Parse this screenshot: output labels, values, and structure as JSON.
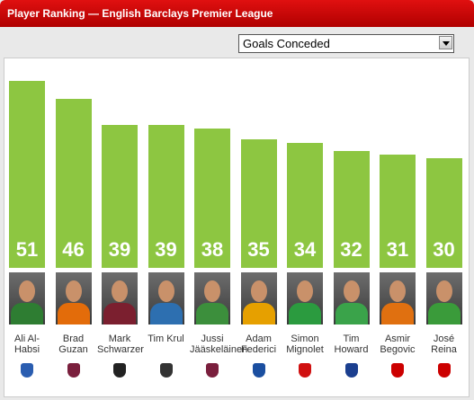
{
  "chart_data": {
    "type": "bar",
    "title": "Player Ranking — English Barclays Premier League",
    "selector": "Goals Conceded",
    "categories": [
      "Ali Al-Habsi",
      "Brad Guzan",
      "Mark Schwarzer",
      "Tim Krul",
      "Jussi Jääskeläinen",
      "Adam Federici",
      "Simon Mignolet",
      "Tim Howard",
      "Asmir Begovic",
      "José Reina"
    ],
    "values": [
      51,
      46,
      39,
      39,
      38,
      35,
      34,
      32,
      31,
      30
    ],
    "color": "#8dc641",
    "ylim": [
      0,
      52
    ]
  }
}
